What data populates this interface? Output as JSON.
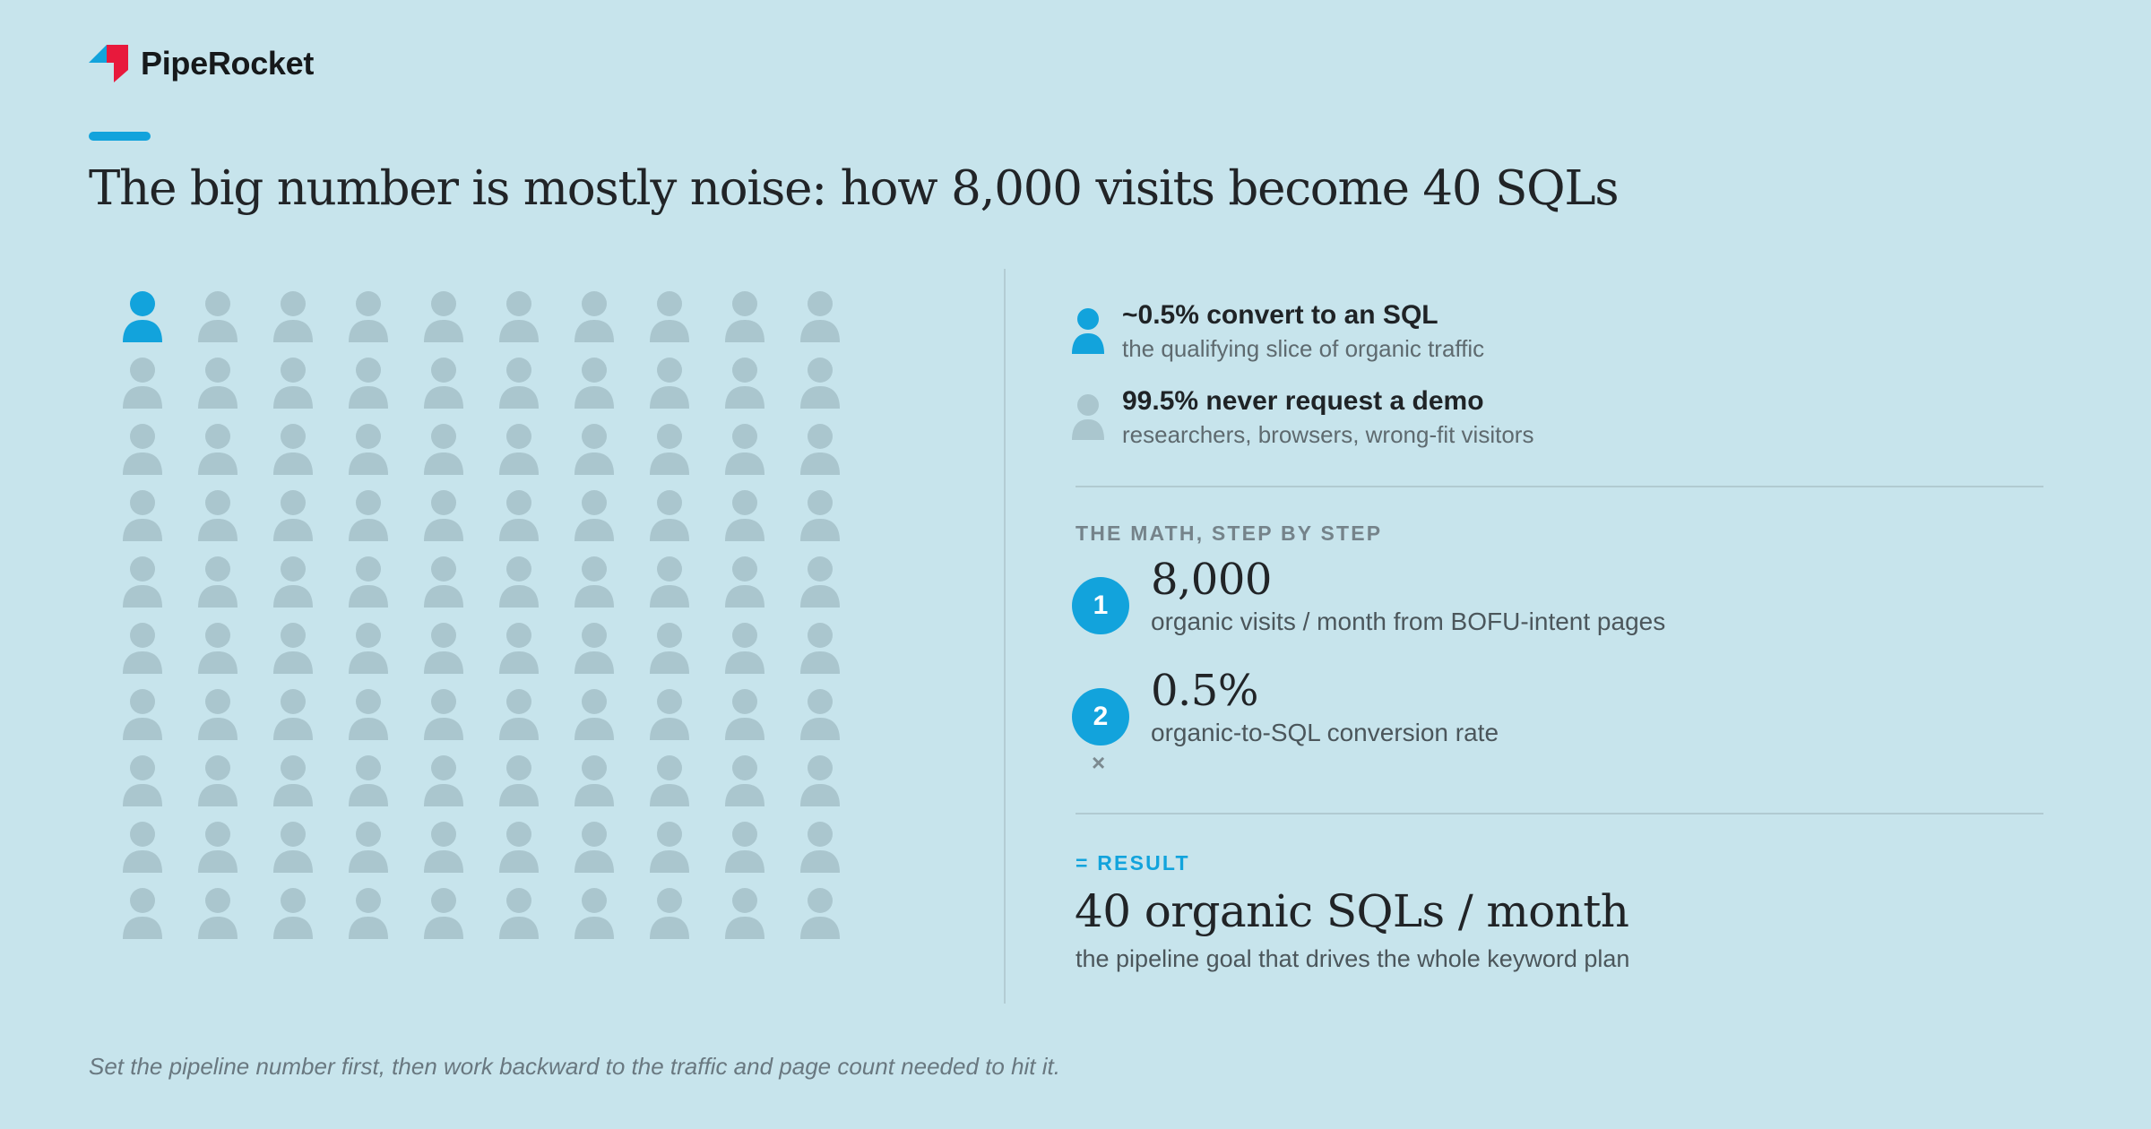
{
  "brand": {
    "name": "PipeRocket",
    "logo_colors": {
      "red": "#e8193c",
      "blue": "#12a3dc"
    }
  },
  "title": "The big number is mostly noise: how 8,000 visits become 40 SQLs",
  "people_grid": {
    "rows": 10,
    "columns": 10,
    "highlighted_count": 1,
    "highlight_color": "#12a3dc",
    "muted_color": "#aac6ce"
  },
  "legend": [
    {
      "title": "~0.5% convert to an SQL",
      "subtitle": "the qualifying slice of organic traffic",
      "icon": "person-icon-highlighted"
    },
    {
      "title": "99.5% never request a demo",
      "subtitle": "researchers, browsers, wrong-fit visitors",
      "icon": "person-icon-muted"
    }
  ],
  "math": {
    "label": "THE MATH, STEP BY STEP",
    "steps": [
      {
        "number": "1",
        "value": "8,000",
        "description": "organic visits / month from BOFU-intent pages"
      },
      {
        "number": "2",
        "value": "0.5%",
        "description": "organic-to-SQL conversion rate"
      }
    ],
    "operator": "×"
  },
  "result": {
    "label": "= RESULT",
    "value": "40 organic SQLs / month",
    "description": "the pipeline goal that drives the whole keyword plan"
  },
  "footnote": "Set the pipeline number first, then work backward to the traffic and page count needed to hit it."
}
